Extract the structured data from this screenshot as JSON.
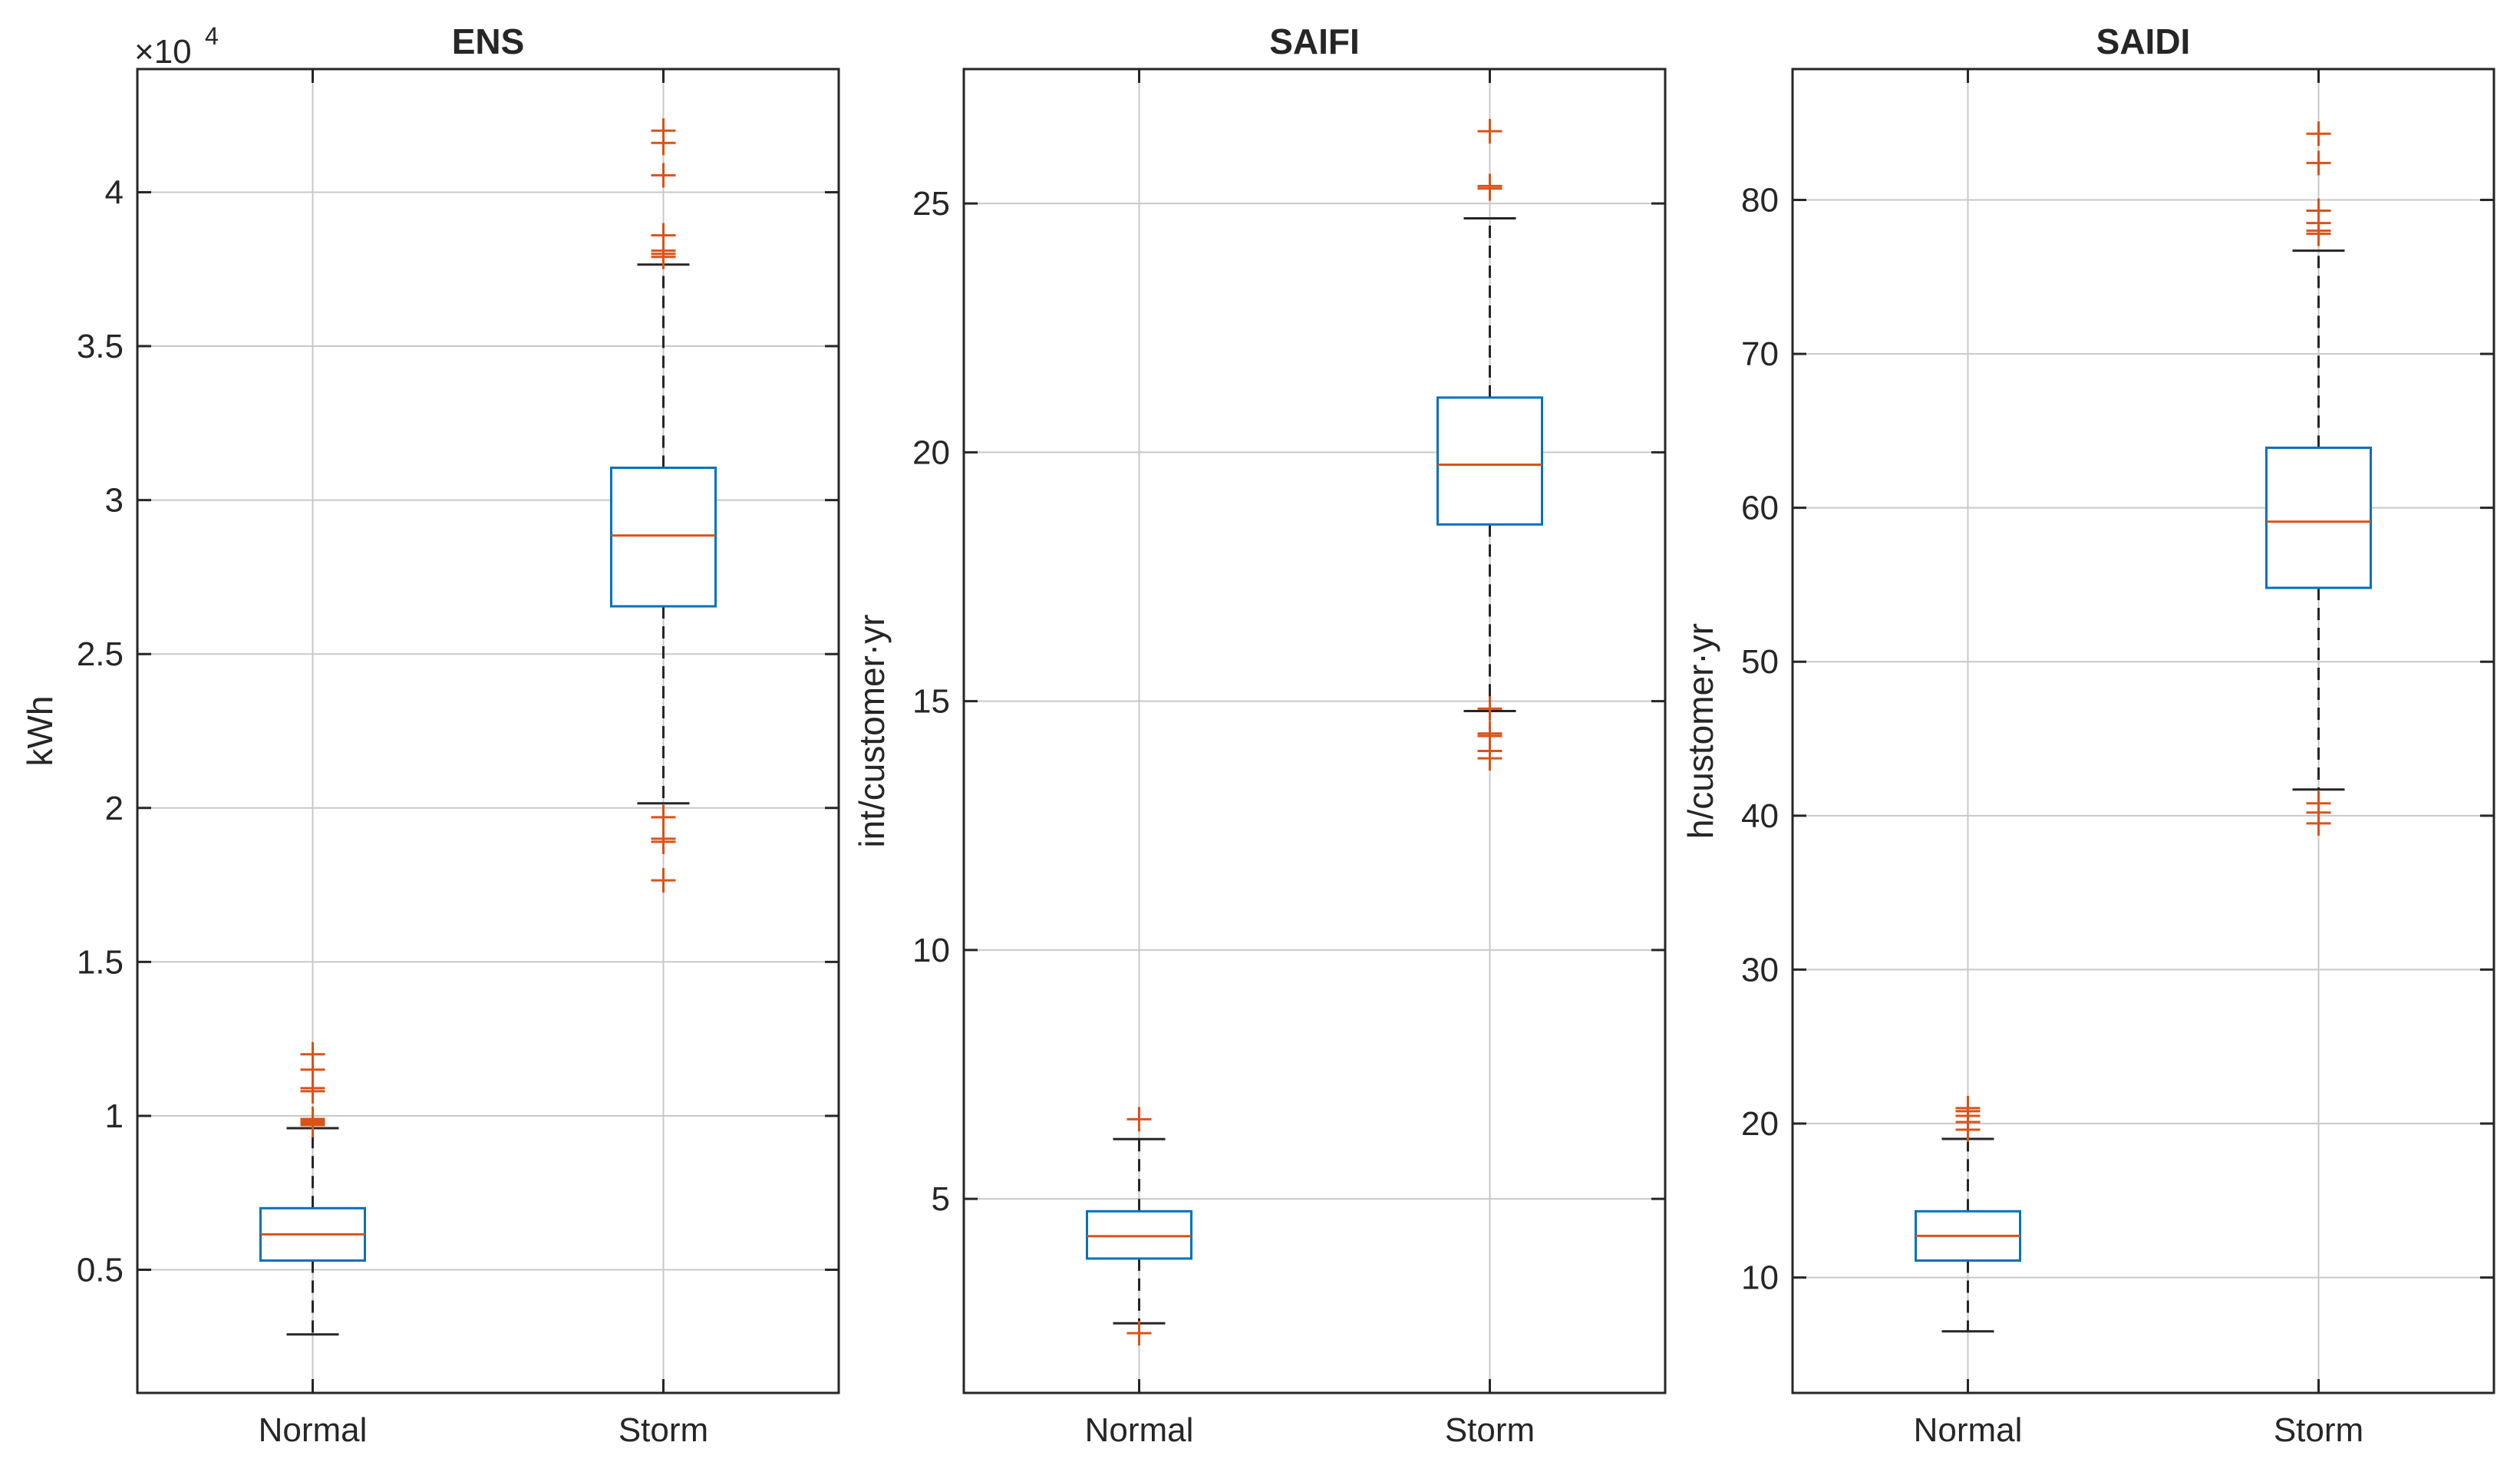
{
  "chart_data": [
    {
      "type": "box",
      "title": "ENS",
      "ylabel": "kWh",
      "exponent_label": "×10",
      "exponent_power": "4",
      "ylim": [
        0.1,
        4.4
      ],
      "yticks": [
        0.5,
        1,
        1.5,
        2,
        2.5,
        3,
        3.5,
        4
      ],
      "ytick_labels": [
        "0.5",
        "1",
        "1.5",
        "2",
        "2.5",
        "3",
        "3.5",
        "4"
      ],
      "categories": [
        "Normal",
        "Storm"
      ],
      "boxes": [
        {
          "category": "Normal",
          "whisker_low": 0.29,
          "q1": 0.53,
          "median": 0.615,
          "q3": 0.7,
          "whisker_high": 0.96,
          "outliers": [
            0.97,
            0.975,
            0.98,
            0.985,
            0.99,
            1.08,
            1.09,
            1.15,
            1.2
          ]
        },
        {
          "category": "Storm",
          "whisker_low": 2.015,
          "q1": 2.655,
          "median": 2.885,
          "q3": 3.105,
          "whisker_high": 3.765,
          "outliers": [
            1.765,
            1.89,
            1.9,
            1.97,
            3.79,
            3.8,
            3.81,
            3.86,
            4.055,
            4.16,
            4.2
          ]
        }
      ]
    },
    {
      "type": "box",
      "title": "SAIFI",
      "ylabel": "int/customer·yr",
      "ylim": [
        1.1,
        27.7
      ],
      "yticks": [
        5,
        10,
        15,
        20,
        25
      ],
      "ytick_labels": [
        "5",
        "10",
        "15",
        "20",
        "25"
      ],
      "categories": [
        "Normal",
        "Storm"
      ],
      "boxes": [
        {
          "category": "Normal",
          "whisker_low": 2.5,
          "q1": 3.8,
          "median": 4.25,
          "q3": 4.75,
          "whisker_high": 6.2,
          "outliers": [
            2.3,
            6.6
          ]
        },
        {
          "category": "Storm",
          "whisker_low": 14.8,
          "q1": 18.55,
          "median": 19.75,
          "q3": 21.1,
          "whisker_high": 24.7,
          "outliers": [
            13.85,
            14.0,
            14.3,
            14.35,
            14.85,
            25.3,
            25.35,
            26.45
          ]
        }
      ]
    },
    {
      "type": "box",
      "title": "SAIDI",
      "ylabel": "h/customer·yr",
      "ylim": [
        2.5,
        88.5
      ],
      "yticks": [
        10,
        20,
        30,
        40,
        50,
        60,
        70,
        80
      ],
      "ytick_labels": [
        "10",
        "20",
        "30",
        "40",
        "50",
        "60",
        "70",
        "80"
      ],
      "categories": [
        "Normal",
        "Storm"
      ],
      "boxes": [
        {
          "category": "Normal",
          "whisker_low": 6.5,
          "q1": 11.1,
          "median": 12.7,
          "q3": 14.3,
          "whisker_high": 19.0,
          "outliers": [
            19.6,
            20.1,
            20.5,
            20.8,
            21.0
          ]
        },
        {
          "category": "Storm",
          "whisker_low": 41.7,
          "q1": 54.8,
          "median": 59.1,
          "q3": 63.9,
          "whisker_high": 76.7,
          "outliers": [
            39.5,
            40.2,
            40.8,
            77.8,
            78.0,
            78.5,
            79.3,
            82.4,
            84.3
          ]
        }
      ]
    }
  ],
  "colors": {
    "box": "#0072BD",
    "median": "#D95319",
    "outlier": "#D95319",
    "whisker": "#262626",
    "grid": "#c8c8c8",
    "axis": "#262626"
  }
}
